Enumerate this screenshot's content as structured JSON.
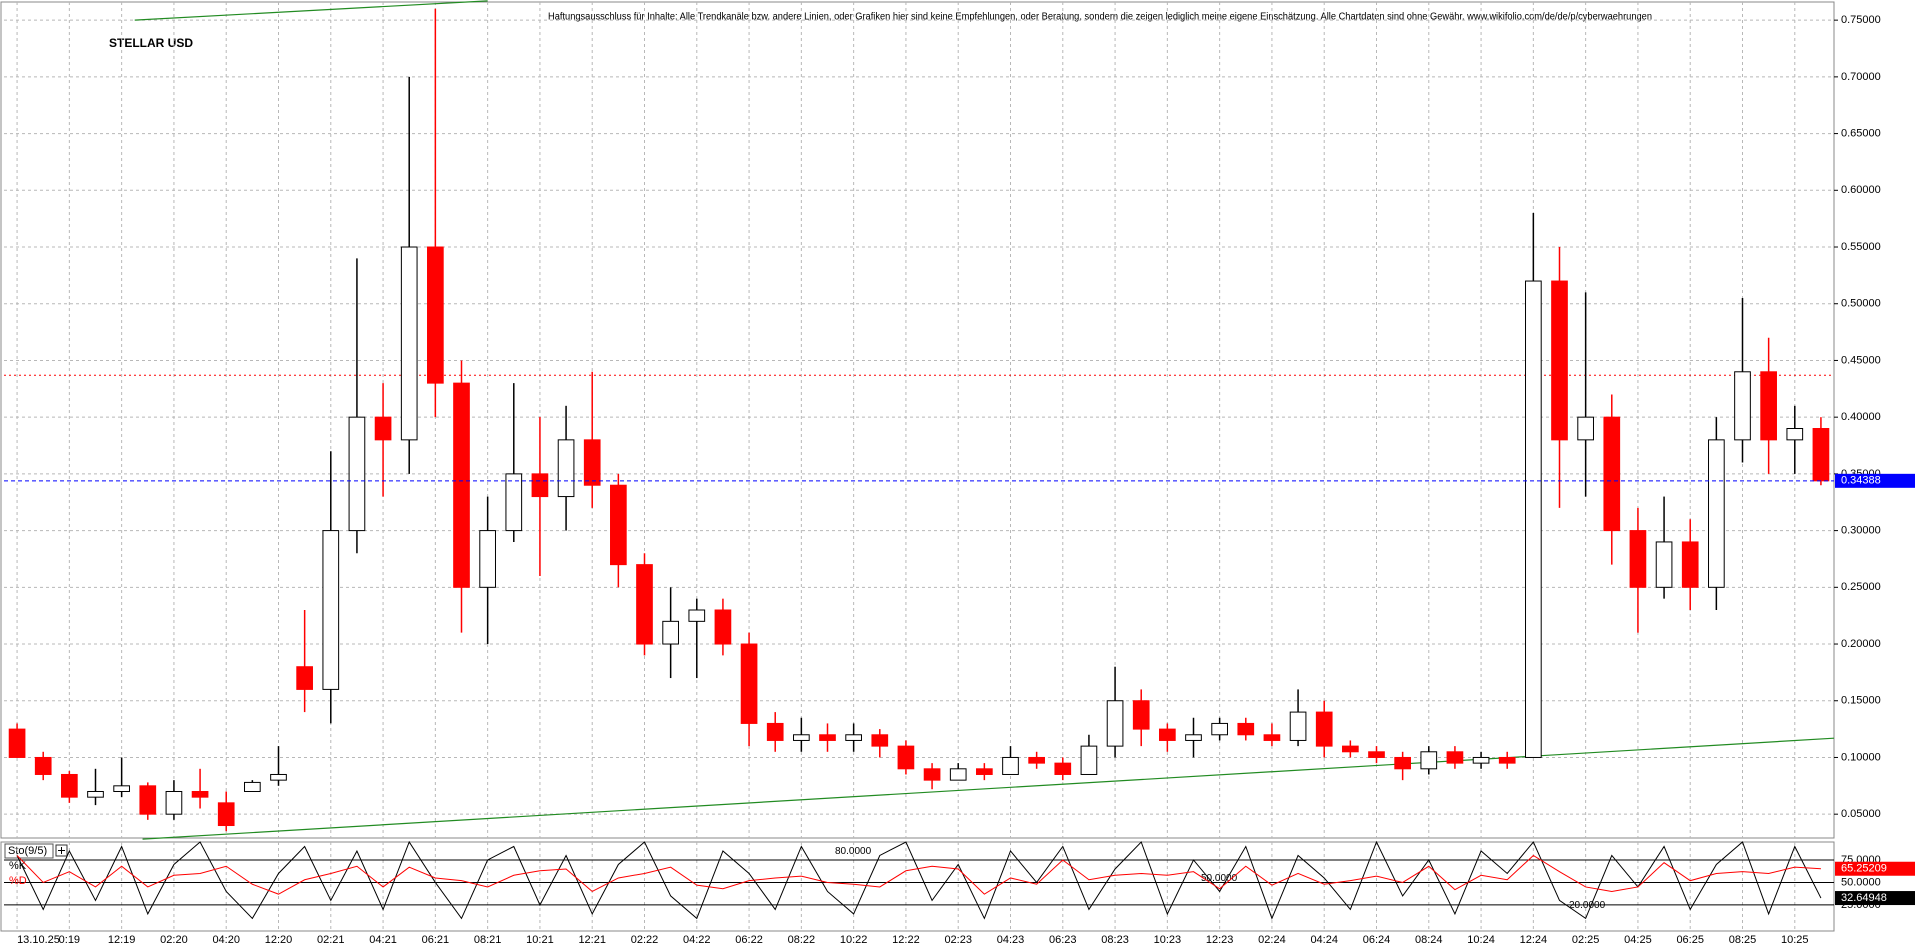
{
  "chart_data": {
    "type": "candlestick",
    "title": "STELLAR USD",
    "disclaimer": "Haftungsausschluss für Inhalte: Alle Trendkanäle bzw. andere Linien, oder Grafiken hier sind keine Empfehlungen, oder Beratung, sondern die zeigen lediglich meine eigene Einschätzung. Alle Chartdaten sind ohne Gewähr. www.wikifolio.com/de/de/p/cyberwaehrungen",
    "categories": [
      "13.10.25",
      null,
      "0:19",
      null,
      "12:19",
      null,
      "02:20",
      null,
      "04:20",
      null,
      "12:20",
      null,
      "02:21",
      null,
      "04:21",
      null,
      "06:21",
      null,
      "08:21",
      null,
      "10:21",
      null,
      "12:21",
      null,
      "02:22",
      null,
      "04:22",
      null,
      "06:22",
      null,
      "08:22",
      null,
      "10:22",
      null,
      "12:22",
      null,
      "02:23",
      null,
      "04:23",
      null,
      "06:23",
      null,
      "08:23",
      null,
      "10:23",
      null,
      "12:23",
      null,
      "02:24",
      null,
      "04:24",
      null,
      "06:24",
      null,
      "08:24",
      null,
      "10:24",
      null,
      "12:24",
      null,
      "02:25",
      null,
      "04:25",
      null,
      "06:25",
      null,
      "08:25",
      null,
      "10:25",
      null
    ],
    "open": [
      0.125,
      0.1,
      0.085,
      0.065,
      0.07,
      0.075,
      0.05,
      0.07,
      0.06,
      0.07,
      0.08,
      0.18,
      0.16,
      0.3,
      0.4,
      0.38,
      0.55,
      0.43,
      0.25,
      0.3,
      0.35,
      0.33,
      0.38,
      0.34,
      0.27,
      0.2,
      0.22,
      0.23,
      0.2,
      0.13,
      0.115,
      0.12,
      0.115,
      0.12,
      0.11,
      0.09,
      0.08,
      0.09,
      0.085,
      0.1,
      0.095,
      0.085,
      0.11,
      0.15,
      0.125,
      0.115,
      0.12,
      0.13,
      0.12,
      0.115,
      0.14,
      0.11,
      0.105,
      0.1,
      0.09,
      0.105,
      0.095,
      0.1,
      0.1,
      0.52,
      0.38,
      0.4,
      0.3,
      0.25,
      0.29,
      0.25,
      0.38,
      0.44,
      0.38,
      0.39
    ],
    "high": [
      0.13,
      0.105,
      0.088,
      0.09,
      0.1,
      0.078,
      0.08,
      0.09,
      0.07,
      0.08,
      0.11,
      0.23,
      0.37,
      0.54,
      0.43,
      0.7,
      0.76,
      0.45,
      0.33,
      0.43,
      0.4,
      0.41,
      0.44,
      0.35,
      0.28,
      0.25,
      0.24,
      0.24,
      0.21,
      0.14,
      0.135,
      0.13,
      0.13,
      0.125,
      0.115,
      0.095,
      0.095,
      0.095,
      0.11,
      0.105,
      0.1,
      0.12,
      0.18,
      0.16,
      0.13,
      0.135,
      0.135,
      0.135,
      0.13,
      0.16,
      0.15,
      0.115,
      0.11,
      0.105,
      0.11,
      0.11,
      0.105,
      0.105,
      0.58,
      0.55,
      0.51,
      0.42,
      0.32,
      0.33,
      0.31,
      0.4,
      0.505,
      0.47,
      0.41,
      0.4
    ],
    "low": [
      0.1,
      0.08,
      0.06,
      0.058,
      0.065,
      0.045,
      0.045,
      0.055,
      0.035,
      0.07,
      0.075,
      0.14,
      0.13,
      0.28,
      0.33,
      0.35,
      0.4,
      0.21,
      0.2,
      0.29,
      0.26,
      0.3,
      0.32,
      0.25,
      0.19,
      0.17,
      0.17,
      0.19,
      0.11,
      0.105,
      0.105,
      0.105,
      0.105,
      0.1,
      0.085,
      0.072,
      0.08,
      0.08,
      0.085,
      0.09,
      0.08,
      0.085,
      0.1,
      0.11,
      0.105,
      0.1,
      0.115,
      0.115,
      0.11,
      0.11,
      0.1,
      0.1,
      0.095,
      0.08,
      0.085,
      0.09,
      0.09,
      0.09,
      0.1,
      0.32,
      0.33,
      0.27,
      0.21,
      0.24,
      0.23,
      0.23,
      0.36,
      0.35,
      0.35,
      0.34
    ],
    "close": [
      0.1,
      0.085,
      0.065,
      0.07,
      0.075,
      0.05,
      0.07,
      0.065,
      0.04,
      0.078,
      0.085,
      0.16,
      0.3,
      0.4,
      0.38,
      0.55,
      0.43,
      0.25,
      0.3,
      0.35,
      0.33,
      0.38,
      0.34,
      0.27,
      0.2,
      0.22,
      0.23,
      0.2,
      0.13,
      0.115,
      0.12,
      0.115,
      0.12,
      0.11,
      0.09,
      0.08,
      0.09,
      0.085,
      0.1,
      0.095,
      0.085,
      0.11,
      0.15,
      0.125,
      0.115,
      0.12,
      0.13,
      0.12,
      0.115,
      0.14,
      0.11,
      0.105,
      0.1,
      0.09,
      0.105,
      0.095,
      0.1,
      0.095,
      0.52,
      0.38,
      0.4,
      0.3,
      0.25,
      0.29,
      0.25,
      0.38,
      0.44,
      0.38,
      0.39,
      0.34388
    ],
    "up_color": "#000000",
    "down_color": "#ff0000",
    "ylim": [
      0.029,
      0.766
    ],
    "yticks": [
      {
        "value": 0.05,
        "label": "0.05000"
      },
      {
        "value": 0.1,
        "label": "0.10000"
      },
      {
        "value": 0.15,
        "label": "0.15000"
      },
      {
        "value": 0.2,
        "label": "0.20000"
      },
      {
        "value": 0.25,
        "label": "0.25000"
      },
      {
        "value": 0.3,
        "label": "0.30000"
      },
      {
        "value": 0.35,
        "label": "0.35000"
      },
      {
        "value": 0.4,
        "label": "0.40000"
      },
      {
        "value": 0.45,
        "label": "0.45000"
      },
      {
        "value": 0.5,
        "label": "0.50000"
      },
      {
        "value": 0.55,
        "label": "0.55000"
      },
      {
        "value": 0.6,
        "label": "0.60000"
      },
      {
        "value": 0.65,
        "label": "0.65000"
      },
      {
        "value": 0.7,
        "label": "0.70000"
      },
      {
        "value": 0.75,
        "label": "0.75000"
      }
    ],
    "grid": true,
    "last_price": 0.34388,
    "last_price_color": "#0000ff",
    "hlines": [
      {
        "value": 0.437,
        "color": "#ff0000"
      }
    ],
    "trendlines": [
      {
        "x": [
          4.8,
          69.5
        ],
        "y": [
          0.028,
          0.117
        ],
        "color": "#228b22"
      },
      {
        "x": [
          4.5,
          18
        ],
        "y": [
          0.75,
          0.767
        ],
        "color": "#228b22"
      }
    ],
    "indicator": {
      "name": "Sto(9/5)",
      "ylim": [
        -4,
        95
      ],
      "yticks": [
        {
          "value": 25,
          "label": "25.0000"
        },
        {
          "value": 50,
          "label": "50.0000"
        },
        {
          "value": 75,
          "label": "75.0000"
        }
      ],
      "levels": [
        {
          "value": 80,
          "label": "80.0000"
        },
        {
          "value": 50,
          "label": "50.0000"
        },
        {
          "value": 20,
          "label": "20.0000"
        }
      ],
      "series": [
        {
          "name": "%K",
          "color": "#000000",
          "values": [
            80,
            20,
            85,
            30,
            90,
            15,
            70,
            95,
            40,
            10,
            60,
            90,
            30,
            85,
            20,
            95,
            50,
            10,
            75,
            90,
            25,
            80,
            15,
            70,
            95,
            35,
            10,
            85,
            60,
            20,
            90,
            40,
            15,
            80,
            95,
            30,
            70,
            10,
            85,
            50,
            90,
            20,
            65,
            95,
            15,
            75,
            40,
            90,
            10,
            80,
            55,
            20,
            95,
            35,
            75,
            15,
            85,
            60,
            95,
            30,
            10,
            80,
            45,
            90,
            20,
            70,
            95,
            15,
            90,
            32.64948
          ]
        },
        {
          "name": "%D",
          "color": "#ff0000",
          "values": [
            80,
            50,
            62,
            45,
            68,
            45,
            58,
            60,
            68,
            48,
            37,
            53,
            60,
            68,
            45,
            67,
            55,
            52,
            45,
            58,
            63,
            65,
            40,
            55,
            60,
            67,
            47,
            43,
            52,
            55,
            57,
            50,
            48,
            45,
            63,
            68,
            65,
            37,
            55,
            48,
            75,
            53,
            58,
            60,
            58,
            62,
            43,
            68,
            47,
            60,
            48,
            52,
            57,
            50,
            68,
            42,
            58,
            53,
            80,
            62,
            45,
            40,
            45,
            72,
            52,
            60,
            62,
            60,
            67,
            65.25209
          ]
        }
      ]
    }
  }
}
